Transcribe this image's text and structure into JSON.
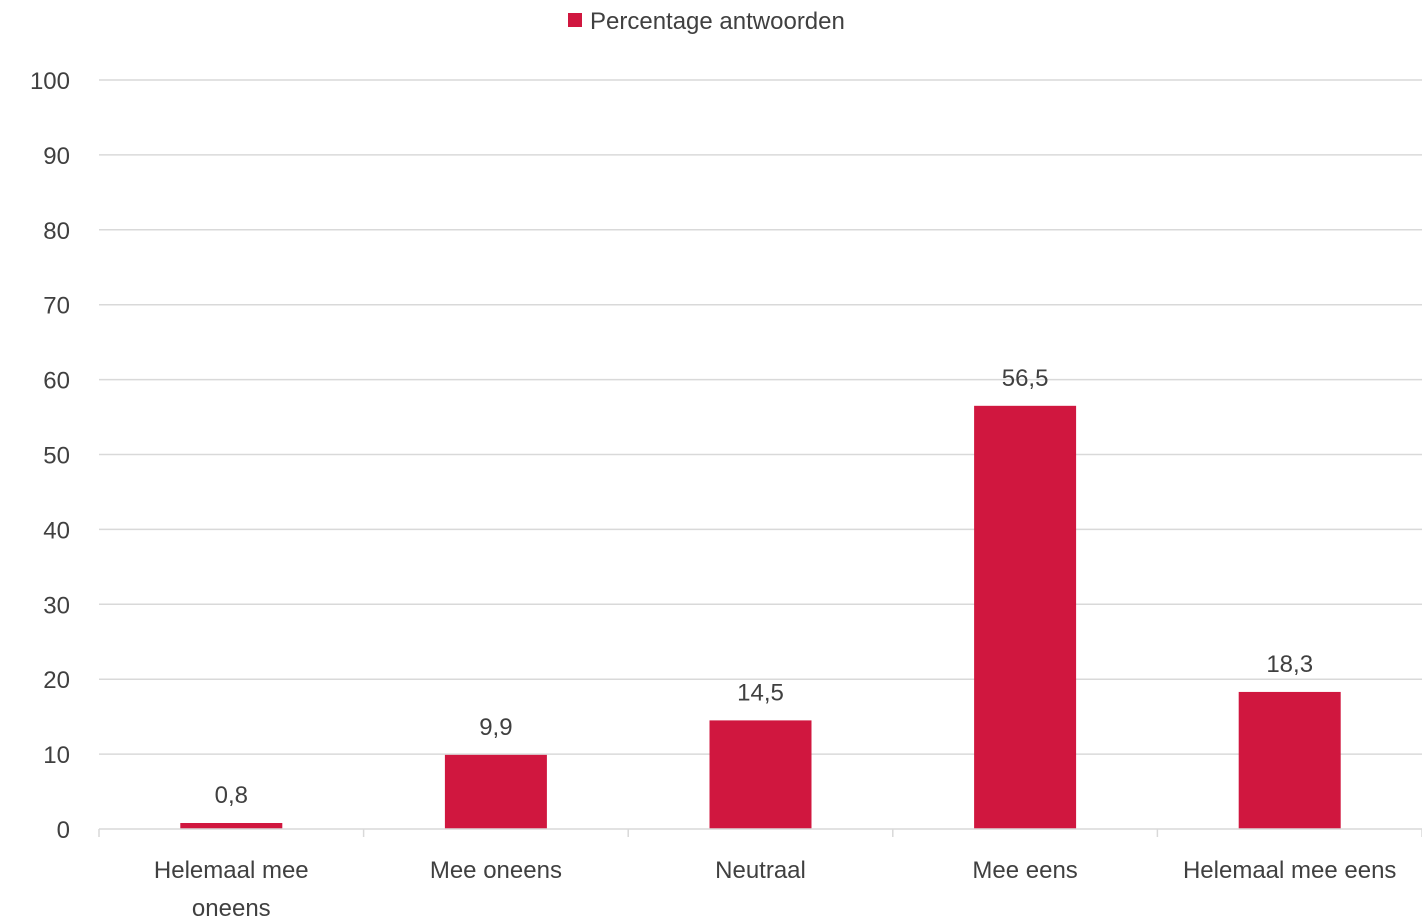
{
  "chart_data": {
    "type": "bar",
    "categories": [
      [
        "Helemaal mee",
        "oneens"
      ],
      [
        "Mee oneens"
      ],
      [
        "Neutraal"
      ],
      [
        "Mee eens"
      ],
      [
        "Helemaal mee eens"
      ]
    ],
    "series": [
      {
        "name": "Percentage antwoorden",
        "color": "#D0173F",
        "values": [
          0.8,
          9.9,
          14.5,
          56.5,
          18.3
        ],
        "labels": [
          "0,8",
          "9,9",
          "14,5",
          "56,5",
          "18,3"
        ]
      }
    ],
    "yticks": [
      "0",
      "10",
      "20",
      "30",
      "40",
      "50",
      "60",
      "70",
      "80",
      "90",
      "100"
    ],
    "ylim": [
      0,
      100
    ],
    "grid": true,
    "legend_position": "top-center",
    "title": "",
    "xlabel": "",
    "ylabel": ""
  }
}
